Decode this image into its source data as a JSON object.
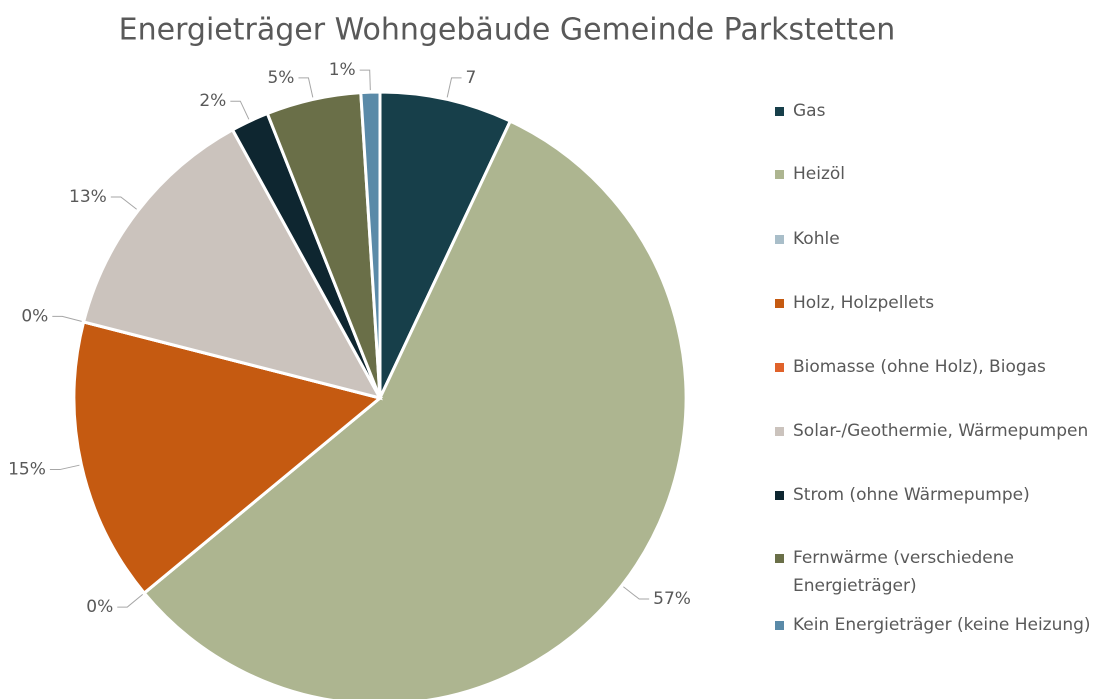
{
  "chart_data": {
    "type": "pie",
    "title": "Energieträger Wohngebäude Gemeinde Parkstetten",
    "categories": [
      "Gas",
      "Heizöl",
      "Kohle",
      "Holz, Holzpellets",
      "Biomasse (ohne Holz), Biogas",
      "Solar-/Geothermie, Wärmepumpen",
      "Strom (ohne Wärmepumpe)",
      "Fernwärme (verschiedene Energieträger)",
      "Kein Energieträger (keine Heizung)"
    ],
    "values": [
      7,
      57,
      0,
      15,
      0,
      13,
      2,
      5,
      1
    ],
    "value_labels": [
      "7",
      "57%",
      "0%",
      "15%",
      "0%",
      "13%",
      "2%",
      "5%",
      "1%"
    ],
    "colors": [
      "#173f4a",
      "#adb590",
      "#a9bec9",
      "#c55a11",
      "#e0622a",
      "#cbc3bd",
      "#0e2630",
      "#6a6f48",
      "#5a8aa8"
    ],
    "legend": "right"
  }
}
